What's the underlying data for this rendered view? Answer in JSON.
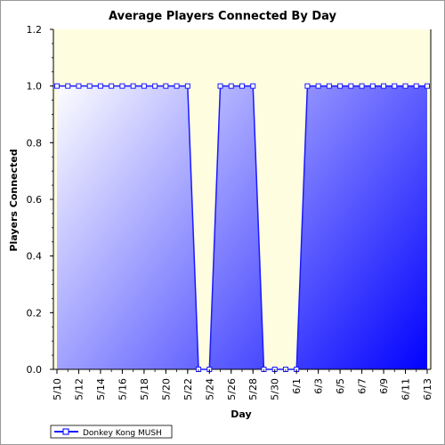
{
  "chart_data": {
    "type": "area",
    "title": "Average Players Connected By Day",
    "xlabel": "Day",
    "ylabel": "Players Connected",
    "ylim": [
      0,
      1.2
    ],
    "yticks": [
      "0.0",
      "0.2",
      "0.4",
      "0.6",
      "0.8",
      "1.0",
      "1.2"
    ],
    "ytick_values": [
      0,
      0.2,
      0.4,
      0.6,
      0.8,
      1.0,
      1.2
    ],
    "xtick_labels": [
      "5/10",
      "5/12",
      "5/14",
      "5/16",
      "5/18",
      "5/20",
      "5/22",
      "5/24",
      "5/26",
      "5/28",
      "5/30",
      "6/1",
      "6/3",
      "6/5",
      "6/7",
      "6/9",
      "6/11",
      "6/13"
    ],
    "legend_position": "bottom-left",
    "grid": false,
    "colors": {
      "plot_background": "#fefde0",
      "series_line": "#1a1aff",
      "area_light": "#ffffff",
      "area_dark": "#0000ff"
    },
    "series": [
      {
        "name": "Donkey Kong MUSH",
        "x": [
          "5/10",
          "5/11",
          "5/12",
          "5/13",
          "5/14",
          "5/15",
          "5/16",
          "5/17",
          "5/18",
          "5/19",
          "5/20",
          "5/21",
          "5/22",
          "5/23",
          "5/24",
          "5/25",
          "5/26",
          "5/27",
          "5/28",
          "5/29",
          "5/30",
          "5/31",
          "6/1",
          "6/2",
          "6/3",
          "6/4",
          "6/5",
          "6/6",
          "6/7",
          "6/8",
          "6/9",
          "6/10",
          "6/11",
          "6/12",
          "6/13"
        ],
        "values": [
          1,
          1,
          1,
          1,
          1,
          1,
          1,
          1,
          1,
          1,
          1,
          1,
          1,
          0,
          0,
          1,
          1,
          1,
          1,
          0,
          0,
          0,
          0,
          1,
          1,
          1,
          1,
          1,
          1,
          1,
          1,
          1,
          1,
          1,
          1
        ]
      }
    ]
  }
}
